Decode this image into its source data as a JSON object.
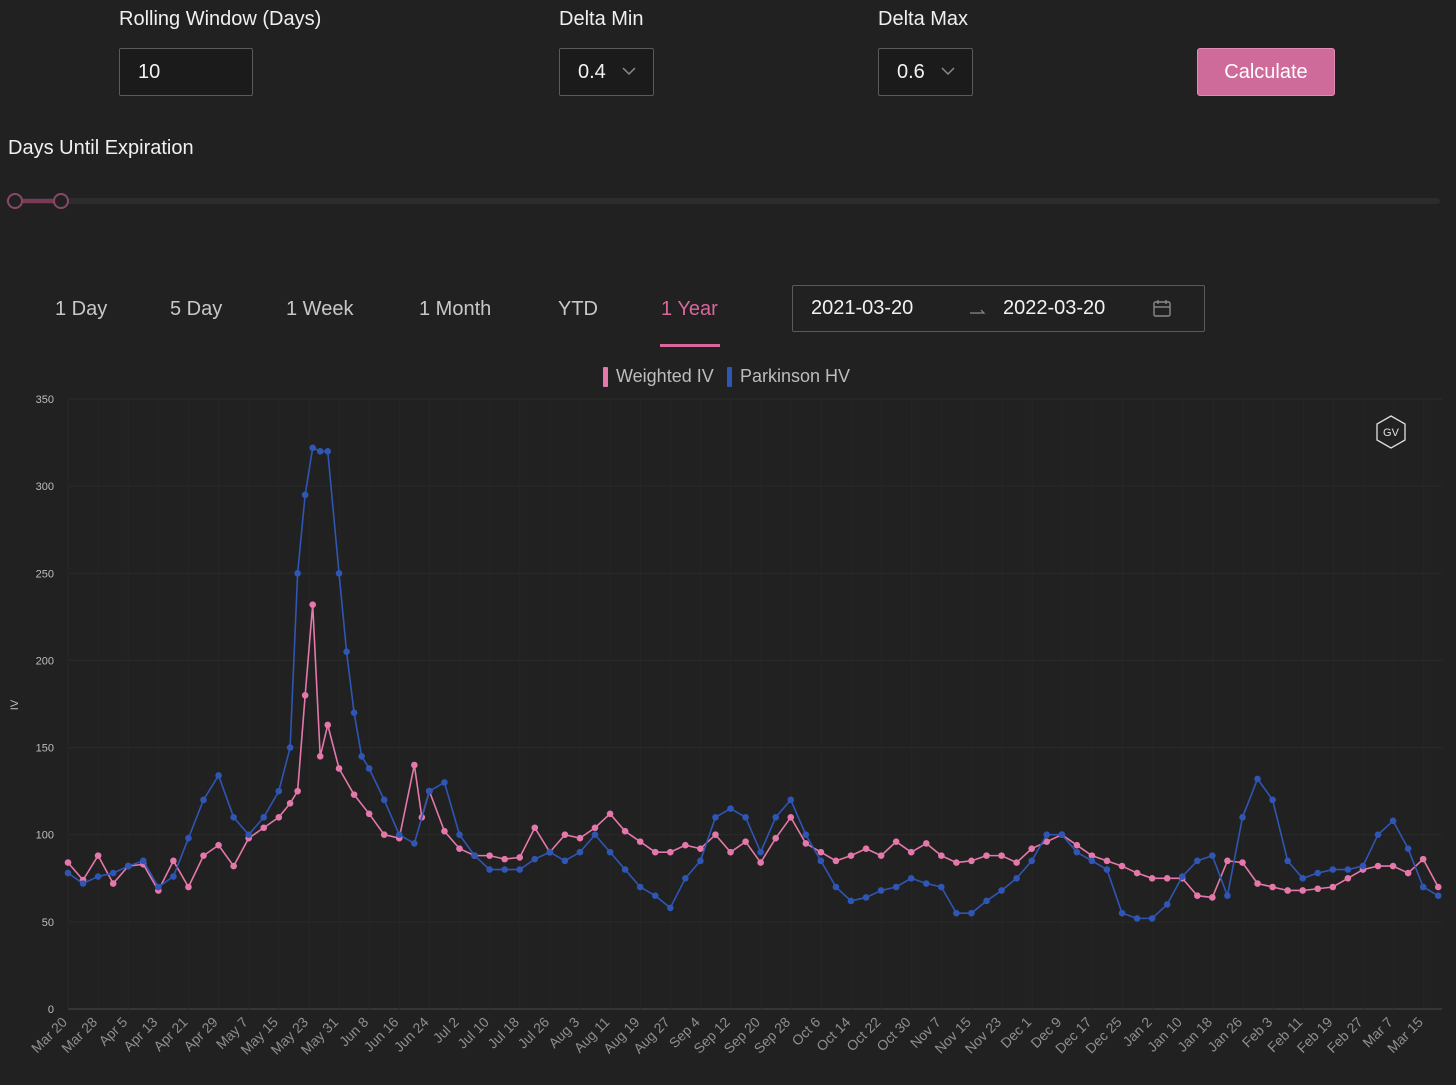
{
  "form": {
    "rolling_window_label": "Rolling Window (Days)",
    "rolling_window_value": "10",
    "delta_min_label": "Delta Min",
    "delta_min_value": "0.4",
    "delta_max_label": "Delta Max",
    "delta_max_value": "0.6",
    "calculate_label": "Calculate"
  },
  "slider": {
    "label": "Days Until Expiration"
  },
  "tabs": [
    {
      "label": "1 Day",
      "active": false
    },
    {
      "label": "5 Day",
      "active": false
    },
    {
      "label": "1 Week",
      "active": false
    },
    {
      "label": "1 Month",
      "active": false
    },
    {
      "label": "YTD",
      "active": false
    },
    {
      "label": "1 Year",
      "active": true
    }
  ],
  "date_range": {
    "start": "2021-03-20",
    "end": "2022-03-20"
  },
  "colors": {
    "weighted_iv": "#e578aa",
    "parkinson_hv": "#2f56b4",
    "accent": "#d9679b",
    "background": "#212121"
  },
  "watermark": "GV",
  "chart_data": {
    "type": "line",
    "title": "",
    "xlabel": "",
    "ylabel": "IV",
    "ylim": [
      0,
      350
    ],
    "yticks": [
      0,
      50,
      100,
      150,
      200,
      250,
      300,
      350
    ],
    "grid": true,
    "legend_placement": "top-center",
    "x_tick_labels": [
      "Mar 20",
      "Mar 28",
      "Apr 5",
      "Apr 13",
      "Apr 21",
      "Apr 29",
      "May 7",
      "May 15",
      "May 23",
      "May 31",
      "Jun 8",
      "Jun 16",
      "Jun 24",
      "Jul 2",
      "Jul 10",
      "Jul 18",
      "Jul 26",
      "Aug 3",
      "Aug 11",
      "Aug 19",
      "Aug 27",
      "Sep 4",
      "Sep 12",
      "Sep 20",
      "Sep 28",
      "Oct 6",
      "Oct 14",
      "Oct 22",
      "Oct 30",
      "Nov 7",
      "Nov 15",
      "Nov 23",
      "Dec 1",
      "Dec 9",
      "Dec 17",
      "Dec 25",
      "Jan 2",
      "Jan 10",
      "Jan 18",
      "Jan 26",
      "Feb 3",
      "Feb 11",
      "Feb 19",
      "Feb 27",
      "Mar 7",
      "Mar 15"
    ],
    "series": [
      {
        "name": "Weighted IV",
        "x": [
          "2021-03-20",
          "2021-03-24",
          "2021-03-28",
          "2021-04-01",
          "2021-04-05",
          "2021-04-09",
          "2021-04-13",
          "2021-04-17",
          "2021-04-21",
          "2021-04-25",
          "2021-04-29",
          "2021-05-03",
          "2021-05-07",
          "2021-05-11",
          "2021-05-15",
          "2021-05-18",
          "2021-05-20",
          "2021-05-22",
          "2021-05-24",
          "2021-05-26",
          "2021-05-28",
          "2021-05-31",
          "2021-06-04",
          "2021-06-08",
          "2021-06-12",
          "2021-06-16",
          "2021-06-20",
          "2021-06-22",
          "2021-06-24",
          "2021-06-28",
          "2021-07-02",
          "2021-07-06",
          "2021-07-10",
          "2021-07-14",
          "2021-07-18",
          "2021-07-22",
          "2021-07-26",
          "2021-07-30",
          "2021-08-03",
          "2021-08-07",
          "2021-08-11",
          "2021-08-15",
          "2021-08-19",
          "2021-08-23",
          "2021-08-27",
          "2021-08-31",
          "2021-09-04",
          "2021-09-08",
          "2021-09-12",
          "2021-09-16",
          "2021-09-20",
          "2021-09-24",
          "2021-09-28",
          "2021-10-02",
          "2021-10-06",
          "2021-10-10",
          "2021-10-14",
          "2021-10-18",
          "2021-10-22",
          "2021-10-26",
          "2021-10-30",
          "2021-11-03",
          "2021-11-07",
          "2021-11-11",
          "2021-11-15",
          "2021-11-19",
          "2021-11-23",
          "2021-11-27",
          "2021-12-01",
          "2021-12-05",
          "2021-12-09",
          "2021-12-13",
          "2021-12-17",
          "2021-12-21",
          "2021-12-25",
          "2021-12-29",
          "2022-01-02",
          "2022-01-06",
          "2022-01-10",
          "2022-01-14",
          "2022-01-18",
          "2022-01-22",
          "2022-01-26",
          "2022-01-30",
          "2022-02-03",
          "2022-02-07",
          "2022-02-11",
          "2022-02-15",
          "2022-02-19",
          "2022-02-23",
          "2022-02-27",
          "2022-03-03",
          "2022-03-07",
          "2022-03-11",
          "2022-03-15",
          "2022-03-19"
        ],
        "values": [
          84,
          74,
          88,
          72,
          82,
          83,
          68,
          85,
          70,
          88,
          94,
          82,
          98,
          104,
          110,
          118,
          125,
          180,
          232,
          145,
          163,
          138,
          123,
          112,
          100,
          98,
          140,
          110,
          125,
          102,
          92,
          88,
          88,
          86,
          87,
          104,
          90,
          100,
          98,
          104,
          112,
          102,
          96,
          90,
          90,
          94,
          92,
          100,
          90,
          96,
          84,
          98,
          110,
          95,
          90,
          85,
          88,
          92,
          88,
          96,
          90,
          95,
          88,
          84,
          85,
          88,
          88,
          84,
          92,
          96,
          100,
          94,
          88,
          85,
          82,
          78,
          75,
          75,
          75,
          65,
          64,
          85,
          84,
          72,
          70,
          68,
          68,
          69,
          70,
          75,
          80,
          82,
          82,
          78,
          86,
          70
        ]
      },
      {
        "name": "Parkinson HV",
        "x": [
          "2021-03-20",
          "2021-03-24",
          "2021-03-28",
          "2021-04-01",
          "2021-04-05",
          "2021-04-09",
          "2021-04-13",
          "2021-04-17",
          "2021-04-21",
          "2021-04-25",
          "2021-04-29",
          "2021-05-03",
          "2021-05-07",
          "2021-05-11",
          "2021-05-15",
          "2021-05-18",
          "2021-05-20",
          "2021-05-22",
          "2021-05-24",
          "2021-05-26",
          "2021-05-28",
          "2021-05-31",
          "2021-06-02",
          "2021-06-04",
          "2021-06-06",
          "2021-06-08",
          "2021-06-12",
          "2021-06-16",
          "2021-06-20",
          "2021-06-24",
          "2021-06-28",
          "2021-07-02",
          "2021-07-06",
          "2021-07-10",
          "2021-07-14",
          "2021-07-18",
          "2021-07-22",
          "2021-07-26",
          "2021-07-30",
          "2021-08-03",
          "2021-08-07",
          "2021-08-11",
          "2021-08-15",
          "2021-08-19",
          "2021-08-23",
          "2021-08-27",
          "2021-08-31",
          "2021-09-04",
          "2021-09-08",
          "2021-09-12",
          "2021-09-16",
          "2021-09-20",
          "2021-09-24",
          "2021-09-28",
          "2021-10-02",
          "2021-10-06",
          "2021-10-10",
          "2021-10-14",
          "2021-10-18",
          "2021-10-22",
          "2021-10-26",
          "2021-10-30",
          "2021-11-03",
          "2021-11-07",
          "2021-11-11",
          "2021-11-15",
          "2021-11-19",
          "2021-11-23",
          "2021-11-27",
          "2021-12-01",
          "2021-12-05",
          "2021-12-09",
          "2021-12-13",
          "2021-12-17",
          "2021-12-21",
          "2021-12-25",
          "2021-12-29",
          "2022-01-02",
          "2022-01-06",
          "2022-01-10",
          "2022-01-14",
          "2022-01-18",
          "2022-01-22",
          "2022-01-26",
          "2022-01-30",
          "2022-02-03",
          "2022-02-07",
          "2022-02-11",
          "2022-02-15",
          "2022-02-19",
          "2022-02-23",
          "2022-02-27",
          "2022-03-03",
          "2022-03-07",
          "2022-03-11",
          "2022-03-15",
          "2022-03-19"
        ],
        "values": [
          78,
          72,
          76,
          78,
          82,
          85,
          70,
          76,
          98,
          120,
          134,
          110,
          100,
          110,
          125,
          150,
          250,
          295,
          322,
          320,
          320,
          250,
          205,
          170,
          145,
          138,
          120,
          100,
          95,
          125,
          130,
          100,
          88,
          80,
          80,
          80,
          86,
          90,
          85,
          90,
          100,
          90,
          80,
          70,
          65,
          58,
          75,
          85,
          110,
          115,
          110,
          90,
          110,
          120,
          100,
          85,
          70,
          62,
          64,
          68,
          70,
          75,
          72,
          70,
          55,
          55,
          62,
          68,
          75,
          85,
          100,
          100,
          90,
          85,
          80,
          55,
          52,
          52,
          60,
          76,
          85,
          88,
          65,
          110,
          132,
          120,
          85,
          75,
          78,
          80,
          80,
          82,
          100,
          108,
          92,
          70,
          65
        ]
      }
    ]
  }
}
